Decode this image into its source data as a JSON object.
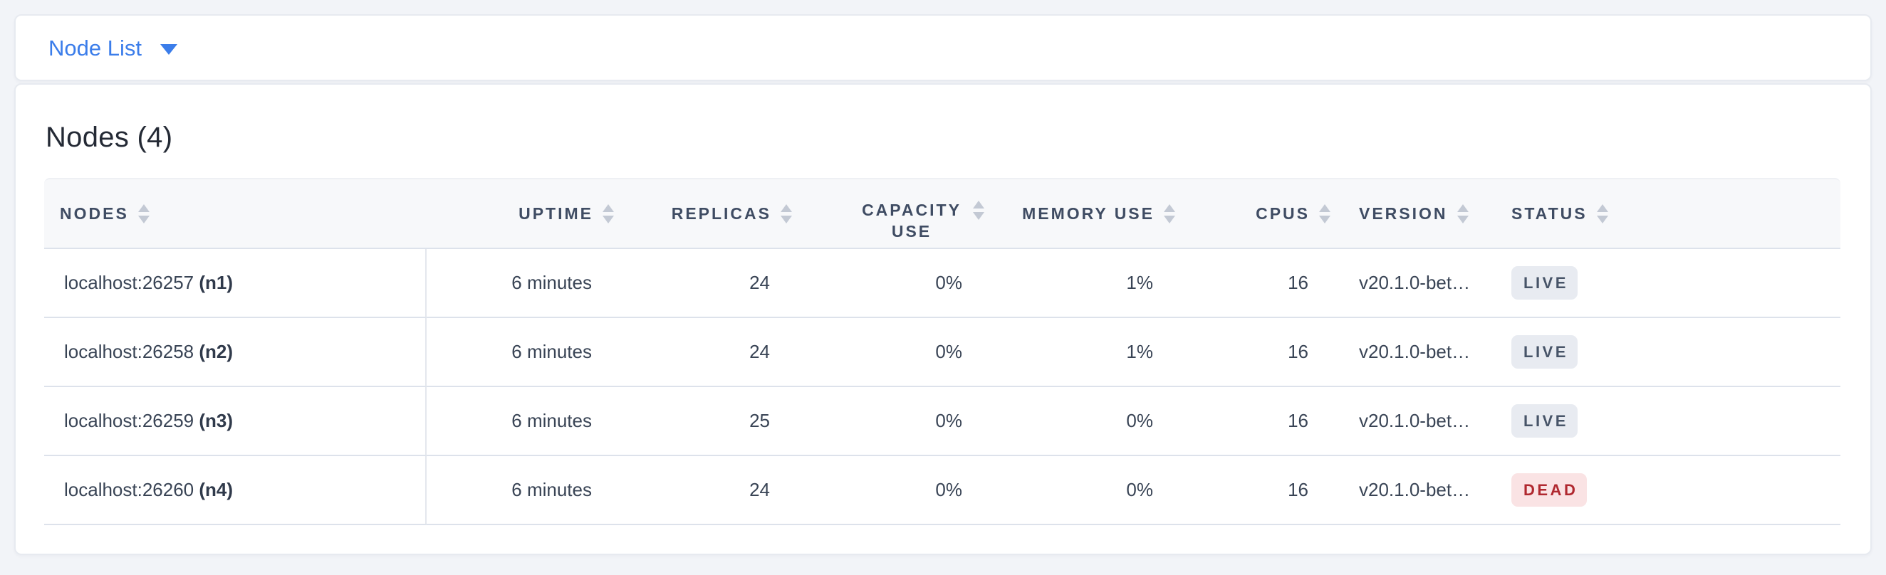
{
  "colors": {
    "accent_blue": "#3b7dea",
    "live_badge_bg": "#e8ebf1",
    "live_badge_text": "#475468",
    "dead_badge_bg": "#fae3e4",
    "dead_badge_text": "#b0282f"
  },
  "icons": {
    "dropdown_caret": "chevron-down",
    "column_sort": "sort-arrows-up-down"
  },
  "toolbar": {
    "dropdown_label": "Node List"
  },
  "panel": {
    "title": "Nodes (4)",
    "table": {
      "columns": [
        {
          "key": "nodes",
          "label": "NODES",
          "align": "left",
          "wrap": false
        },
        {
          "key": "uptime",
          "label": "UPTIME",
          "align": "right",
          "wrap": false
        },
        {
          "key": "replicas",
          "label": "REPLICAS",
          "align": "right",
          "wrap": false
        },
        {
          "key": "capacity_use",
          "label": "CAPACITY USE",
          "align": "right",
          "wrap": true
        },
        {
          "key": "memory_use",
          "label": "MEMORY USE",
          "align": "right",
          "wrap": false
        },
        {
          "key": "cpus",
          "label": "CPUS",
          "align": "right",
          "wrap": false
        },
        {
          "key": "version",
          "label": "VERSION",
          "align": "left",
          "wrap": false
        },
        {
          "key": "status",
          "label": "STATUS",
          "align": "left",
          "wrap": false
        }
      ],
      "rows": [
        {
          "address": "localhost:26257",
          "id": "(n1)",
          "uptime": "6 minutes",
          "replicas": "24",
          "capacity_use": "0%",
          "memory_use": "1%",
          "cpus": "16",
          "version": "v20.1.0-bet…",
          "status": "LIVE"
        },
        {
          "address": "localhost:26258",
          "id": "(n2)",
          "uptime": "6 minutes",
          "replicas": "24",
          "capacity_use": "0%",
          "memory_use": "1%",
          "cpus": "16",
          "version": "v20.1.0-bet…",
          "status": "LIVE"
        },
        {
          "address": "localhost:26259",
          "id": "(n3)",
          "uptime": "6 minutes",
          "replicas": "25",
          "capacity_use": "0%",
          "memory_use": "0%",
          "cpus": "16",
          "version": "v20.1.0-bet…",
          "status": "LIVE"
        },
        {
          "address": "localhost:26260",
          "id": "(n4)",
          "uptime": "6 minutes",
          "replicas": "24",
          "capacity_use": "0%",
          "memory_use": "0%",
          "cpus": "16",
          "version": "v20.1.0-bet…",
          "status": "DEAD"
        }
      ],
      "status_styles": {
        "LIVE": {
          "bg": "#e8ebf1",
          "text": "#475468"
        },
        "DEAD": {
          "bg": "#fae3e4",
          "text": "#b0282f"
        }
      }
    }
  }
}
